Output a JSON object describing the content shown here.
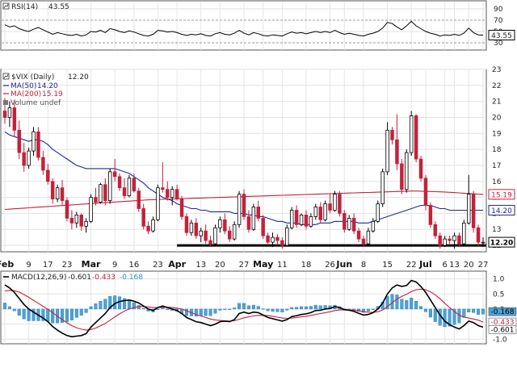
{
  "panels": {
    "rsi": {
      "label": "RSI(14)",
      "value_text": "43.55",
      "ticks": [
        "90",
        "70",
        "50",
        "30"
      ],
      "last_badge": "43.55"
    },
    "price": {
      "title": "$VIX (Daily)",
      "title_value": "12.20",
      "legend": [
        {
          "label": "MA(50)",
          "value": "14.20",
          "color": "#1f2a8a"
        },
        {
          "label": "MA(200)",
          "value": "15.19",
          "color": "#c4213c"
        },
        {
          "label": "Volume undef",
          "value": "",
          "color": "#555555"
        }
      ],
      "ticks": [
        "23",
        "22",
        "21",
        "20",
        "19",
        "18",
        "17",
        "16",
        "15",
        "14",
        "13",
        "12"
      ],
      "badges": [
        "15.19",
        "14.20",
        "12.20"
      ]
    },
    "macd": {
      "label": "MACD(12,26,9)",
      "v1": "-0.601",
      "v2": "-0.433",
      "v3": "-0.168",
      "ticks": [
        "1.0",
        "0.5",
        "0.0",
        "-0.5",
        "-1.0"
      ],
      "badges": [
        "-0.168",
        "-0.433",
        "-0.601"
      ]
    }
  },
  "x_axis": {
    "labels": [
      {
        "text": "Feb",
        "month": true
      },
      {
        "text": "9",
        "month": false
      },
      {
        "text": "17",
        "month": false
      },
      {
        "text": "23",
        "month": false
      },
      {
        "text": "Mar",
        "month": true
      },
      {
        "text": "9",
        "month": false
      },
      {
        "text": "16",
        "month": false
      },
      {
        "text": "23",
        "month": false
      },
      {
        "text": "Apr",
        "month": true
      },
      {
        "text": "13",
        "month": false
      },
      {
        "text": "20",
        "month": false
      },
      {
        "text": "27",
        "month": false
      },
      {
        "text": "May",
        "month": true
      },
      {
        "text": "11",
        "month": false
      },
      {
        "text": "18",
        "month": false
      },
      {
        "text": "26",
        "month": false
      },
      {
        "text": "Jun",
        "month": true
      },
      {
        "text": "8",
        "month": false
      },
      {
        "text": "15",
        "month": false
      },
      {
        "text": "22",
        "month": false
      },
      {
        "text": "Jul",
        "month": true
      },
      {
        "text": "6",
        "month": false
      },
      {
        "text": "13",
        "month": false
      },
      {
        "text": "20",
        "month": false
      },
      {
        "text": "27",
        "month": false
      }
    ]
  },
  "chart_data": {
    "type": "candlestick",
    "title": "$VIX (Daily)",
    "y_range": [
      11.6,
      23
    ],
    "support_level": 12.0,
    "candles": [
      [
        20.4,
        21.2,
        19.6,
        20.0
      ],
      [
        20.0,
        21.0,
        19.4,
        20.6
      ],
      [
        20.6,
        21.1,
        18.8,
        19.2
      ],
      [
        19.2,
        19.8,
        17.4,
        17.8
      ],
      [
        17.8,
        18.4,
        16.6,
        17.0
      ],
      [
        17.0,
        18.1,
        16.8,
        17.9
      ],
      [
        17.9,
        19.4,
        17.6,
        19.1
      ],
      [
        19.1,
        19.4,
        17.3,
        17.5
      ],
      [
        17.5,
        17.9,
        16.4,
        16.7
      ],
      [
        16.7,
        17.1,
        15.8,
        16.0
      ],
      [
        16.0,
        16.2,
        14.6,
        14.9
      ],
      [
        14.9,
        15.8,
        14.7,
        15.6
      ],
      [
        15.6,
        16.1,
        14.5,
        14.8
      ],
      [
        14.8,
        15.0,
        13.5,
        13.7
      ],
      [
        13.7,
        14.2,
        13.0,
        13.4
      ],
      [
        13.4,
        14.1,
        13.1,
        13.9
      ],
      [
        13.9,
        14.0,
        12.9,
        13.2
      ],
      [
        13.2,
        13.7,
        12.8,
        13.5
      ],
      [
        13.5,
        15.2,
        13.4,
        15.0
      ],
      [
        15.0,
        15.6,
        14.5,
        14.7
      ],
      [
        14.7,
        15.9,
        14.6,
        15.8
      ],
      [
        15.8,
        16.2,
        14.5,
        14.8
      ],
      [
        14.8,
        16.8,
        14.6,
        16.6
      ],
      [
        16.6,
        17.4,
        16.0,
        16.3
      ],
      [
        16.3,
        16.5,
        15.4,
        15.6
      ],
      [
        15.6,
        16.2,
        14.9,
        15.1
      ],
      [
        15.1,
        16.4,
        15.0,
        16.2
      ],
      [
        16.2,
        16.5,
        15.3,
        15.4
      ],
      [
        15.4,
        15.6,
        14.1,
        14.3
      ],
      [
        14.3,
        14.6,
        13.0,
        13.2
      ],
      [
        13.2,
        13.5,
        12.7,
        12.9
      ],
      [
        12.9,
        13.8,
        12.8,
        13.6
      ],
      [
        13.6,
        15.8,
        13.5,
        15.6
      ],
      [
        15.6,
        17.2,
        15.3,
        15.5
      ],
      [
        15.5,
        16.0,
        14.8,
        15.0
      ],
      [
        15.0,
        15.7,
        14.5,
        15.5
      ],
      [
        15.5,
        15.8,
        14.8,
        14.9
      ],
      [
        14.9,
        15.1,
        13.6,
        13.8
      ],
      [
        13.8,
        14.0,
        12.6,
        12.8
      ],
      [
        12.8,
        13.6,
        12.6,
        13.4
      ],
      [
        13.4,
        13.7,
        12.4,
        12.6
      ],
      [
        12.6,
        13.1,
        12.2,
        12.9
      ],
      [
        12.9,
        13.3,
        12.1,
        12.3
      ],
      [
        12.3,
        12.6,
        11.9,
        12.1
      ],
      [
        12.1,
        13.3,
        12.0,
        13.1
      ],
      [
        13.1,
        13.8,
        12.8,
        13.6
      ],
      [
        13.6,
        14.0,
        12.7,
        12.9
      ],
      [
        12.9,
        13.2,
        12.2,
        12.4
      ],
      [
        12.4,
        13.5,
        12.3,
        13.3
      ],
      [
        13.3,
        15.4,
        13.1,
        15.2
      ],
      [
        15.2,
        15.5,
        13.6,
        13.8
      ],
      [
        13.8,
        14.2,
        12.8,
        13.0
      ],
      [
        13.0,
        14.6,
        12.9,
        14.4
      ],
      [
        14.4,
        14.8,
        13.5,
        13.7
      ],
      [
        13.7,
        13.9,
        12.4,
        12.6
      ],
      [
        12.6,
        12.8,
        12.0,
        12.2
      ],
      [
        12.2,
        12.8,
        11.9,
        12.5
      ],
      [
        12.5,
        12.7,
        12.0,
        12.3
      ],
      [
        12.3,
        12.5,
        11.8,
        12.0
      ],
      [
        12.0,
        13.3,
        12.0,
        13.1
      ],
      [
        13.1,
        14.4,
        13.0,
        14.2
      ],
      [
        14.2,
        14.5,
        13.1,
        13.3
      ],
      [
        13.3,
        14.0,
        13.2,
        13.9
      ],
      [
        13.9,
        14.2,
        13.0,
        13.2
      ],
      [
        13.2,
        14.0,
        13.1,
        13.8
      ],
      [
        13.8,
        14.6,
        13.6,
        14.4
      ],
      [
        14.4,
        14.7,
        13.4,
        13.6
      ],
      [
        13.6,
        14.8,
        13.5,
        14.6
      ],
      [
        14.6,
        15.2,
        14.0,
        14.2
      ],
      [
        14.2,
        15.4,
        14.1,
        15.2
      ],
      [
        15.2,
        15.4,
        13.8,
        14.0
      ],
      [
        14.0,
        14.2,
        12.8,
        13.0
      ],
      [
        13.0,
        13.9,
        12.9,
        13.7
      ],
      [
        13.7,
        14.0,
        12.7,
        12.9
      ],
      [
        12.9,
        13.1,
        12.2,
        12.4
      ],
      [
        12.4,
        12.6,
        11.9,
        12.1
      ],
      [
        12.1,
        13.1,
        12.0,
        12.9
      ],
      [
        12.9,
        13.7,
        12.8,
        13.5
      ],
      [
        13.5,
        14.8,
        13.4,
        14.6
      ],
      [
        14.6,
        16.8,
        14.4,
        16.6
      ],
      [
        16.6,
        19.7,
        16.4,
        19.2
      ],
      [
        19.2,
        19.4,
        18.3,
        18.6
      ],
      [
        18.6,
        20.2,
        16.7,
        17.1
      ],
      [
        17.1,
        17.4,
        15.2,
        15.5
      ],
      [
        15.5,
        18.0,
        15.3,
        17.8
      ],
      [
        17.8,
        20.4,
        17.6,
        20.1
      ],
      [
        20.1,
        20.2,
        17.2,
        17.4
      ],
      [
        17.4,
        17.6,
        16.0,
        16.2
      ],
      [
        16.2,
        16.4,
        14.2,
        14.5
      ],
      [
        14.5,
        14.7,
        13.1,
        13.3
      ],
      [
        13.3,
        13.5,
        12.4,
        12.6
      ],
      [
        12.6,
        12.8,
        11.8,
        12.0
      ],
      [
        12.0,
        12.6,
        11.9,
        12.4
      ],
      [
        12.4,
        12.6,
        12.1,
        12.3
      ],
      [
        12.3,
        12.8,
        11.8,
        12.6
      ],
      [
        12.6,
        12.8,
        11.9,
        12.1
      ],
      [
        12.1,
        13.6,
        12.0,
        13.4
      ],
      [
        13.4,
        16.4,
        13.3,
        15.2
      ],
      [
        15.2,
        15.4,
        12.8,
        13.1
      ],
      [
        13.1,
        13.3,
        11.9,
        12.2
      ],
      [
        12.2,
        12.5,
        11.9,
        12.2
      ]
    ],
    "ma50": [
      19.1,
      18.9,
      18.8,
      18.7,
      18.6,
      18.5,
      18.6,
      18.6,
      18.5,
      18.3,
      18.0,
      17.8,
      17.6,
      17.4,
      17.2,
      17.0,
      16.9,
      16.8,
      16.8,
      16.8,
      16.8,
      16.8,
      16.8,
      16.8,
      16.7,
      16.6,
      16.5,
      16.3,
      16.1,
      15.9,
      15.6,
      15.4,
      15.2,
      15.0,
      14.9,
      14.8,
      14.6,
      14.5,
      14.4,
      14.3,
      14.3,
      14.2,
      14.2,
      14.1,
      14.1,
      14.1,
      14.1,
      14.1,
      14.0,
      14.0,
      14.0,
      13.9,
      13.9,
      13.8,
      13.8,
      13.7,
      13.6,
      13.5,
      13.5,
      13.4,
      13.4,
      13.4,
      13.3,
      13.3,
      13.3,
      13.3,
      13.4,
      13.4,
      13.4,
      13.5,
      13.5,
      13.5,
      13.5,
      13.5,
      13.4,
      13.4,
      13.4,
      13.5,
      13.6,
      13.7,
      13.8,
      13.9,
      14.0,
      14.1,
      14.2,
      14.3,
      14.4,
      14.5,
      14.5,
      14.5,
      14.4,
      14.3,
      14.3,
      14.2,
      14.2,
      14.2,
      14.2,
      14.2,
      14.2,
      14.2,
      14.2
    ],
    "ma200": [
      14.25,
      14.27,
      14.29,
      14.31,
      14.33,
      14.35,
      14.37,
      14.39,
      14.41,
      14.43,
      14.45,
      14.47,
      14.49,
      14.51,
      14.53,
      14.55,
      14.57,
      14.59,
      14.61,
      14.63,
      14.65,
      14.67,
      14.69,
      14.71,
      14.73,
      14.75,
      14.77,
      14.79,
      14.81,
      14.83,
      14.85,
      14.86,
      14.87,
      14.88,
      14.89,
      14.9,
      14.91,
      14.92,
      14.93,
      14.94,
      14.95,
      14.96,
      14.97,
      14.98,
      14.99,
      15.0,
      15.01,
      15.02,
      15.03,
      15.04,
      15.05,
      15.06,
      15.07,
      15.08,
      15.09,
      15.1,
      15.11,
      15.12,
      15.13,
      15.14,
      15.15,
      15.16,
      15.17,
      15.18,
      15.19,
      15.2,
      15.21,
      15.22,
      15.23,
      15.24,
      15.25,
      15.26,
      15.27,
      15.28,
      15.29,
      15.3,
      15.31,
      15.32,
      15.33,
      15.34,
      15.35,
      15.36,
      15.37,
      15.38,
      15.39,
      15.4,
      15.4,
      15.39,
      15.38,
      15.37,
      15.36,
      15.35,
      15.34,
      15.32,
      15.3,
      15.28,
      15.26,
      15.24,
      15.22,
      15.2,
      15.19
    ],
    "rsi": [
      62,
      58,
      60,
      55,
      52,
      50,
      54,
      57,
      53,
      49,
      45,
      48,
      46,
      44,
      43,
      45,
      42,
      44,
      50,
      49,
      52,
      48,
      55,
      53,
      50,
      48,
      51,
      49,
      46,
      43,
      42,
      45,
      52,
      51,
      49,
      50,
      48,
      45,
      43,
      45,
      44,
      46,
      43,
      42,
      46,
      48,
      45,
      44,
      47,
      52,
      47,
      44,
      48,
      46,
      43,
      42,
      44,
      43,
      42,
      46,
      49,
      47,
      48,
      46,
      48,
      50,
      48,
      50,
      48,
      52,
      48,
      45,
      47,
      45,
      43,
      42,
      45,
      47,
      50,
      56,
      66,
      64,
      58,
      53,
      60,
      68,
      60,
      55,
      50,
      47,
      45,
      42,
      44,
      43,
      45,
      43,
      47,
      56,
      48,
      44,
      43.55
    ],
    "macd": [
      0.8,
      0.7,
      0.55,
      0.35,
      0.15,
      0.0,
      -0.1,
      -0.2,
      -0.3,
      -0.42,
      -0.58,
      -0.7,
      -0.8,
      -0.88,
      -0.92,
      -0.9,
      -0.88,
      -0.82,
      -0.6,
      -0.45,
      -0.3,
      -0.15,
      0.05,
      0.18,
      0.25,
      0.28,
      0.3,
      0.26,
      0.2,
      0.1,
      0.0,
      -0.05,
      0.05,
      0.1,
      0.05,
      0.0,
      -0.05,
      -0.15,
      -0.28,
      -0.35,
      -0.42,
      -0.45,
      -0.5,
      -0.55,
      -0.5,
      -0.42,
      -0.4,
      -0.42,
      -0.35,
      -0.15,
      -0.1,
      -0.15,
      -0.1,
      -0.12,
      -0.2,
      -0.28,
      -0.32,
      -0.36,
      -0.4,
      -0.35,
      -0.25,
      -0.22,
      -0.18,
      -0.16,
      -0.12,
      -0.05,
      -0.04,
      0.0,
      0.02,
      0.08,
      0.05,
      -0.02,
      -0.04,
      -0.08,
      -0.14,
      -0.2,
      -0.18,
      -0.12,
      0.0,
      0.2,
      0.5,
      0.7,
      0.8,
      0.75,
      0.78,
      0.95,
      0.9,
      0.75,
      0.55,
      0.3,
      0.05,
      -0.2,
      -0.4,
      -0.52,
      -0.6,
      -0.66,
      -0.55,
      -0.4,
      -0.45,
      -0.55,
      -0.601
    ],
    "signal": [
      0.6,
      0.62,
      0.61,
      0.56,
      0.48,
      0.39,
      0.29,
      0.19,
      0.09,
      -0.01,
      -0.12,
      -0.24,
      -0.35,
      -0.46,
      -0.55,
      -0.62,
      -0.67,
      -0.7,
      -0.68,
      -0.63,
      -0.56,
      -0.48,
      -0.37,
      -0.26,
      -0.16,
      -0.07,
      0.0,
      0.05,
      0.08,
      0.08,
      0.07,
      0.05,
      0.05,
      0.06,
      0.06,
      0.05,
      0.03,
      0.0,
      -0.06,
      -0.12,
      -0.18,
      -0.23,
      -0.28,
      -0.33,
      -0.36,
      -0.38,
      -0.39,
      -0.4,
      -0.39,
      -0.34,
      -0.29,
      -0.26,
      -0.23,
      -0.21,
      -0.21,
      -0.22,
      -0.24,
      -0.27,
      -0.3,
      -0.31,
      -0.3,
      -0.28,
      -0.26,
      -0.24,
      -0.21,
      -0.18,
      -0.15,
      -0.12,
      -0.09,
      -0.05,
      -0.03,
      -0.03,
      -0.03,
      -0.04,
      -0.06,
      -0.09,
      -0.11,
      -0.11,
      -0.09,
      -0.03,
      0.08,
      0.21,
      0.33,
      0.42,
      0.49,
      0.58,
      0.64,
      0.66,
      0.64,
      0.57,
      0.47,
      0.34,
      0.19,
      0.05,
      -0.08,
      -0.2,
      -0.27,
      -0.3,
      -0.33,
      -0.37,
      -0.433
    ],
    "histogram_note": "MACD minus signal"
  }
}
